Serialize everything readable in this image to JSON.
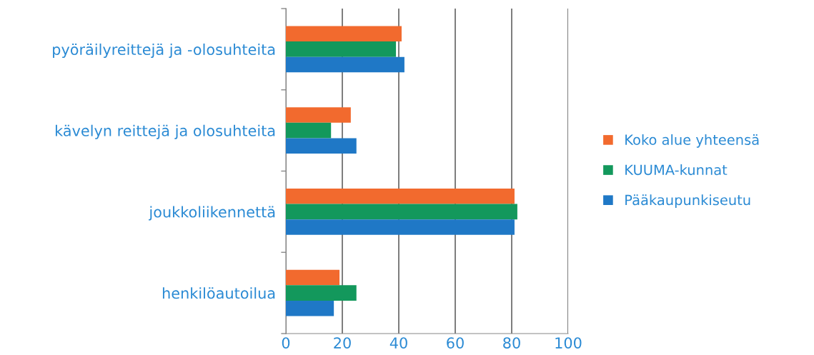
{
  "chart_data": {
    "type": "bar",
    "orientation": "horizontal",
    "categories": [
      "pyöräilyreittejä ja -olosuhteita",
      "kävelyn reittejä ja olosuhteita",
      "joukkoliikennettä",
      "henkilöautoilua"
    ],
    "series": [
      {
        "name": "Koko alue yhteensä",
        "color": "#f26a2e",
        "values": [
          41,
          23,
          81,
          19
        ]
      },
      {
        "name": "KUUMA-kunnat",
        "color": "#13985c",
        "values": [
          39,
          16,
          82,
          25
        ]
      },
      {
        "name": "Pääkaupunkiseutu",
        "color": "#1f78c6",
        "values": [
          42,
          25,
          81,
          17
        ]
      }
    ],
    "xlim": [
      0,
      100
    ],
    "xticks": [
      0,
      20,
      40,
      60,
      80,
      100
    ],
    "grid": "x",
    "legend": "right"
  }
}
